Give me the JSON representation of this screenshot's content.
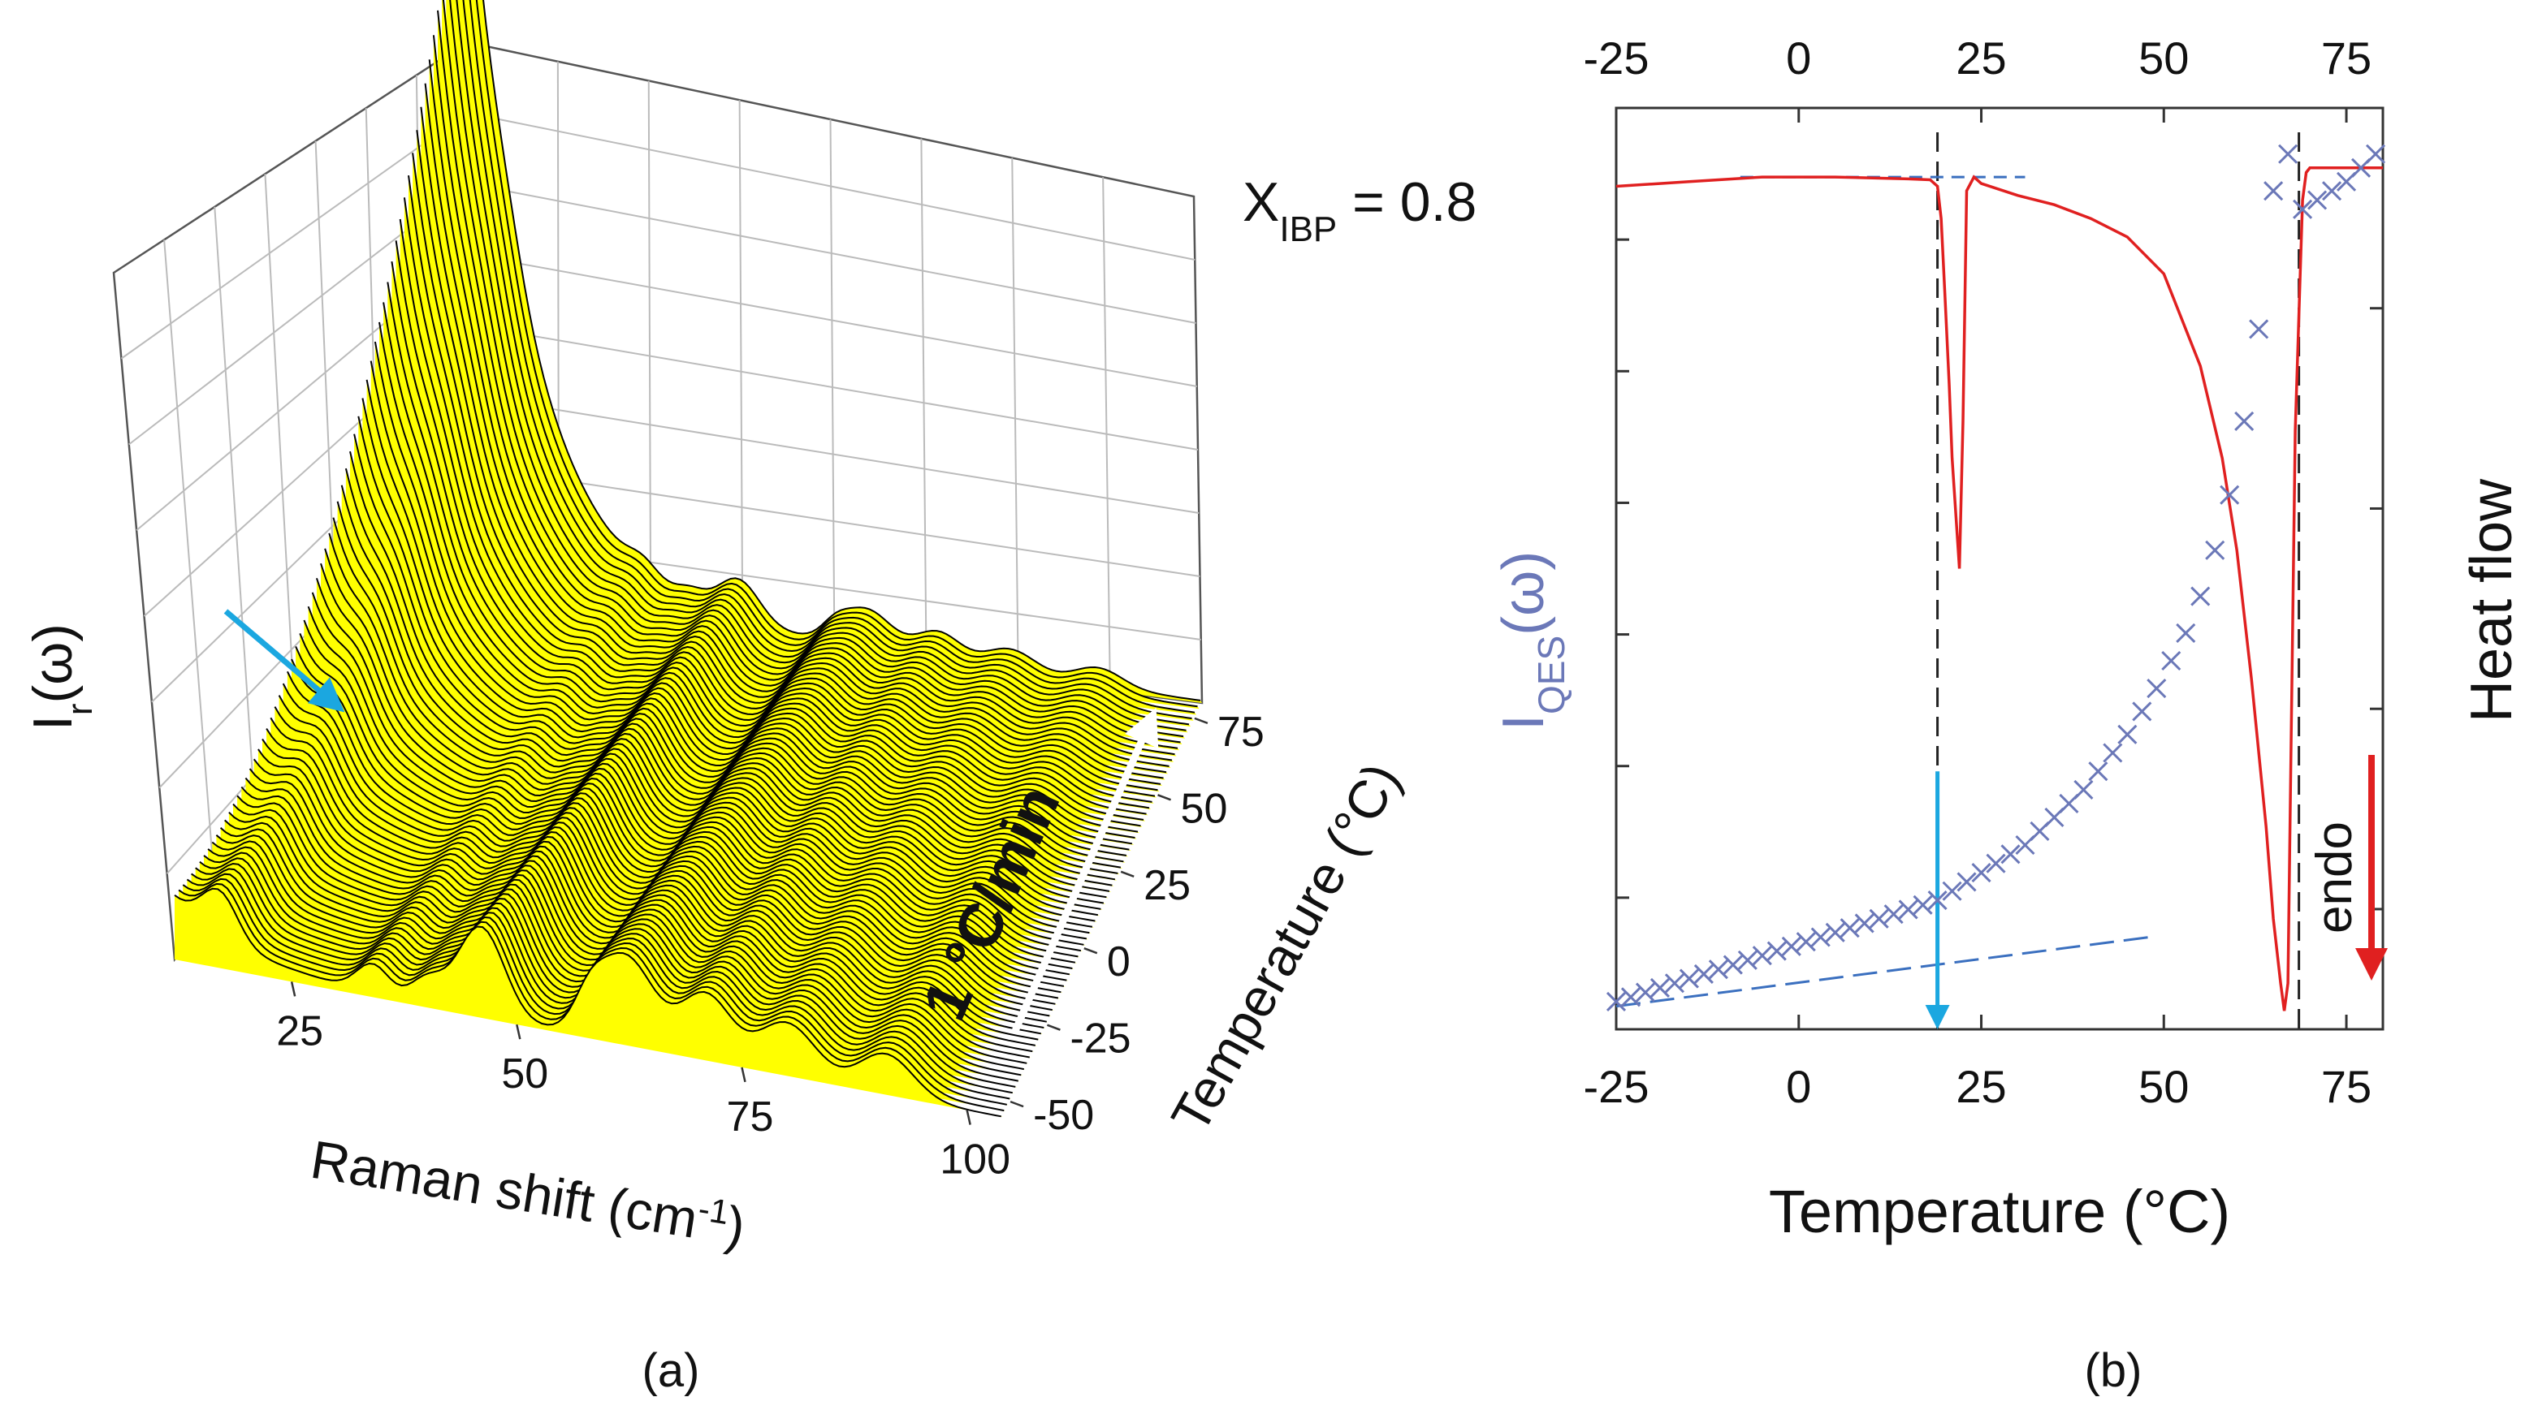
{
  "panels": {
    "a_label": "(a)",
    "b_label": "(b)"
  },
  "chart_data": [
    {
      "id": "a",
      "type": "area",
      "title": "",
      "annotation_composition": {
        "prefix": "X",
        "sub": "IBP",
        "suffix": " = 0.8"
      },
      "annotation_rate": "1 °C/min",
      "xlabel": {
        "main": "Raman shift (cm",
        "sup": "-1",
        "tail": ")"
      },
      "ylabel": {
        "main": "I",
        "sub": "r",
        "tail": "(ω)"
      },
      "zlabel": "Temperature (°C)",
      "xlim": [
        12,
        104
      ],
      "ylim": [
        -55,
        80
      ],
      "x_ticks": [
        "25",
        "50",
        "75",
        "100"
      ],
      "y_ticks": [
        "-50",
        "-25",
        "0",
        "25",
        "50",
        "75"
      ],
      "peaks_cm-1": [
        17,
        34,
        40,
        46,
        58,
        62,
        71,
        80,
        91
      ],
      "surface_color": "#ffff00",
      "curve_color": "#000000",
      "arrow_color": "#1ba7e0"
    },
    {
      "id": "b",
      "type": "scatter",
      "title": "",
      "xlabel": "Temperature (°C)",
      "ylabel_left": {
        "main": "I",
        "sub": "QES",
        "tail": "(ω)"
      },
      "ylabel_right": "Heat flow",
      "endo_label": "endo",
      "xlim": [
        -25,
        80
      ],
      "x_ticks": [
        "-25",
        "0",
        "25",
        "50",
        "75"
      ],
      "x_ticks_top": [
        "-25",
        "0",
        "25",
        "50",
        "75"
      ],
      "series": [
        {
          "name": "I_QES",
          "marker": "x",
          "color": "#6b78b8",
          "x": [
            -25,
            -23,
            -21,
            -19,
            -17,
            -15,
            -13,
            -11,
            -9,
            -7,
            -5,
            -3,
            -1,
            1,
            3,
            5,
            7,
            9,
            11,
            13,
            15,
            17,
            19,
            21,
            23,
            25,
            27,
            29,
            31,
            33,
            35,
            37,
            39,
            41,
            43,
            45,
            47,
            49,
            51,
            53,
            55,
            57,
            59,
            61,
            63,
            65,
            67,
            69,
            71,
            73,
            75,
            77,
            79
          ],
          "y": [
            0.03,
            0.035,
            0.04,
            0.045,
            0.05,
            0.055,
            0.06,
            0.065,
            0.07,
            0.075,
            0.08,
            0.085,
            0.09,
            0.095,
            0.1,
            0.105,
            0.11,
            0.115,
            0.12,
            0.125,
            0.13,
            0.135,
            0.14,
            0.15,
            0.16,
            0.17,
            0.18,
            0.19,
            0.2,
            0.215,
            0.23,
            0.245,
            0.26,
            0.28,
            0.3,
            0.32,
            0.345,
            0.37,
            0.4,
            0.43,
            0.47,
            0.52,
            0.58,
            0.66,
            0.76,
            0.91,
            0.95,
            0.89,
            0.9,
            0.91,
            0.92,
            0.935,
            0.95
          ]
        },
        {
          "name": "Heat flow",
          "type": "line",
          "color": "#e02020",
          "x": [
            -25,
            -15,
            -5,
            5,
            15,
            18,
            19,
            19.5,
            20,
            20.6,
            21,
            21.5,
            22,
            22.5,
            23,
            24,
            25,
            30,
            35,
            40,
            45,
            50,
            55,
            58,
            60,
            62,
            64,
            65,
            66,
            66.5,
            67,
            67.5,
            68,
            69,
            69.5,
            70,
            71,
            75,
            80
          ],
          "y": [
            0.915,
            0.92,
            0.925,
            0.925,
            0.923,
            0.922,
            0.915,
            0.88,
            0.8,
            0.7,
            0.62,
            0.56,
            0.5,
            0.66,
            0.91,
            0.925,
            0.918,
            0.905,
            0.895,
            0.88,
            0.86,
            0.82,
            0.72,
            0.62,
            0.52,
            0.38,
            0.22,
            0.12,
            0.05,
            0.02,
            0.05,
            0.35,
            0.65,
            0.9,
            0.93,
            0.935,
            0.935,
            0.935,
            0.935
          ]
        }
      ],
      "vertical_lines_x": [
        19,
        68.5
      ],
      "blue_arrow_x": 19,
      "dashed_baseline_top": [
        -8,
        31
      ],
      "dashed_fit_bottom": [
        -25,
        48
      ]
    }
  ]
}
